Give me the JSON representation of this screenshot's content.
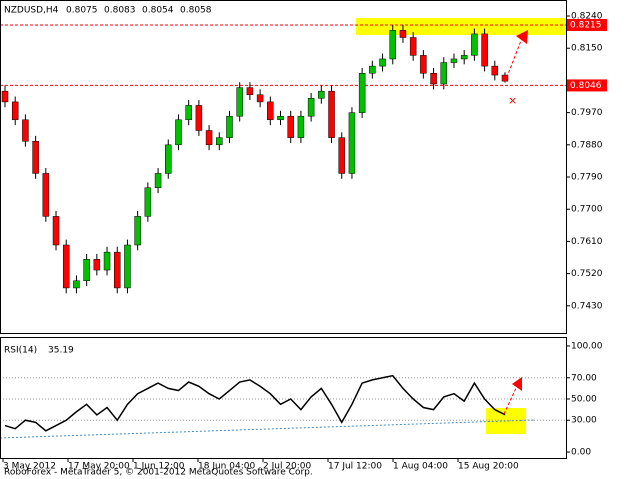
{
  "chart_data": [
    {
      "type": "candlestick",
      "symbol": "NZDUSD,H4",
      "ohlc": [
        0.8075,
        0.8083,
        0.8054,
        0.8058
      ],
      "open": [
        0.803,
        0.8,
        0.795,
        0.789,
        0.78,
        0.768,
        0.76,
        0.748,
        0.75,
        0.756,
        0.753,
        0.758,
        0.748,
        0.76,
        0.768,
        0.776,
        0.78,
        0.788,
        0.795,
        0.799,
        0.792,
        0.788,
        0.79,
        0.796,
        0.804,
        0.802,
        0.8,
        0.795,
        0.796,
        0.79,
        0.796,
        0.801,
        0.803,
        0.79,
        0.78,
        0.797,
        0.808,
        0.81,
        0.812,
        0.82,
        0.818,
        0.813,
        0.808,
        0.805,
        0.811,
        0.812,
        0.813,
        0.819,
        0.81,
        0.8075
      ],
      "high": [
        0.8045,
        0.8015,
        0.7965,
        0.7905,
        0.7815,
        0.7695,
        0.7615,
        0.7515,
        0.7575,
        0.7575,
        0.7595,
        0.7595,
        0.7615,
        0.7695,
        0.7775,
        0.7815,
        0.7895,
        0.7965,
        0.8005,
        0.8005,
        0.7935,
        0.7915,
        0.7975,
        0.8055,
        0.8055,
        0.8035,
        0.8015,
        0.7975,
        0.7975,
        0.7975,
        0.8025,
        0.8045,
        0.8045,
        0.7915,
        0.7985,
        0.8095,
        0.8115,
        0.8135,
        0.8215,
        0.8215,
        0.8195,
        0.8145,
        0.8095,
        0.8125,
        0.8135,
        0.8145,
        0.8205,
        0.8205,
        0.8115,
        0.8083
      ],
      "low": [
        0.7985,
        0.7935,
        0.7875,
        0.7785,
        0.7665,
        0.7585,
        0.7465,
        0.7465,
        0.7485,
        0.7515,
        0.7515,
        0.7465,
        0.7465,
        0.7585,
        0.7665,
        0.7745,
        0.7785,
        0.7865,
        0.7935,
        0.7905,
        0.7865,
        0.7865,
        0.7885,
        0.7945,
        0.8005,
        0.7985,
        0.7935,
        0.7935,
        0.7885,
        0.7885,
        0.7945,
        0.7995,
        0.7885,
        0.7785,
        0.7785,
        0.7955,
        0.8065,
        0.8085,
        0.8105,
        0.8165,
        0.8115,
        0.8065,
        0.8035,
        0.8035,
        0.8095,
        0.8105,
        0.8115,
        0.8085,
        0.806,
        0.8054
      ],
      "close": [
        0.8,
        0.795,
        0.789,
        0.78,
        0.768,
        0.76,
        0.748,
        0.75,
        0.756,
        0.753,
        0.758,
        0.748,
        0.76,
        0.768,
        0.776,
        0.78,
        0.788,
        0.795,
        0.799,
        0.792,
        0.788,
        0.79,
        0.796,
        0.804,
        0.802,
        0.8,
        0.795,
        0.796,
        0.79,
        0.796,
        0.801,
        0.803,
        0.79,
        0.78,
        0.797,
        0.808,
        0.81,
        0.812,
        0.82,
        0.818,
        0.813,
        0.808,
        0.805,
        0.811,
        0.812,
        0.813,
        0.819,
        0.81,
        0.8075,
        0.8058
      ],
      "up_color": "#00c000",
      "down_color": "#ff0000",
      "levels": [
        0.8215,
        0.8046
      ],
      "level_color": "#ff0000",
      "ylim": [
        0.7354,
        0.8282
      ],
      "yticks": [
        {
          "value": 0.824,
          "label": "0.8240"
        },
        {
          "value": 0.815,
          "label": "0.8150"
        },
        {
          "value": 0.797,
          "label": "0.7970"
        },
        {
          "value": 0.788,
          "label": "0.7880"
        },
        {
          "value": 0.779,
          "label": "0.7790"
        },
        {
          "value": 0.77,
          "label": "0.7700"
        },
        {
          "value": 0.761,
          "label": "0.7610"
        },
        {
          "value": 0.752,
          "label": "0.7520"
        },
        {
          "value": 0.743,
          "label": "0.7430"
        }
      ]
    },
    {
      "type": "line",
      "name": "RSI(14)",
      "last": 35.19,
      "color": "#000000",
      "values": [
        25,
        22,
        30,
        28,
        20,
        25,
        30,
        38,
        45,
        35,
        42,
        30,
        45,
        55,
        60,
        65,
        60,
        58,
        66,
        62,
        55,
        50,
        58,
        66,
        68,
        62,
        55,
        45,
        50,
        40,
        52,
        60,
        45,
        28,
        45,
        65,
        68,
        70,
        72,
        60,
        50,
        42,
        40,
        52,
        55,
        48,
        65,
        50,
        40,
        35.19
      ],
      "ylim": [
        -5.6,
        107.5
      ],
      "yticks": [
        {
          "value": 100,
          "label": "100.00"
        },
        {
          "value": 70,
          "label": "70.00"
        },
        {
          "value": 50,
          "label": "50.00"
        },
        {
          "value": 30,
          "label": "30.00"
        },
        {
          "value": 0,
          "label": "0.00"
        }
      ],
      "x_labels": [
        "3 May 2012",
        "17 May 20:00",
        "1 Jun 12:00",
        "18 Jun 04:00",
        "2 Jul 20:00",
        "17 Jul 12:00",
        "1 Aug 04:00",
        "15 Aug 20:00"
      ]
    }
  ],
  "footer": "RoboForex - MetaTrader 5, © 2001-2012 MetaQuotes Software Corp."
}
